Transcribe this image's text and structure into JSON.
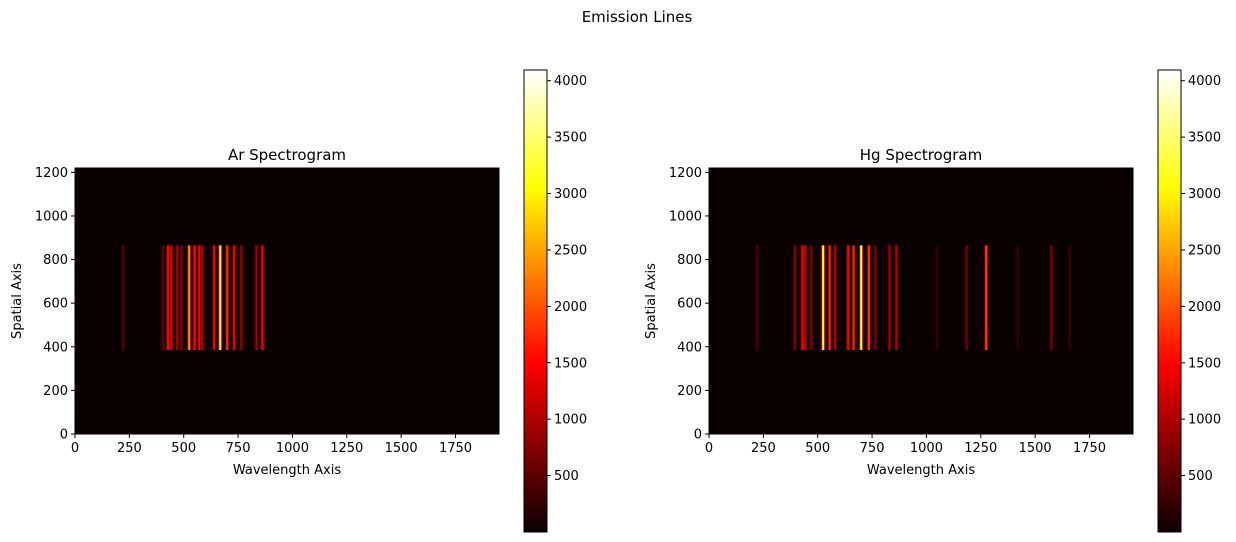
{
  "figure": {
    "suptitle": "Emission Lines"
  },
  "chart_data": [
    {
      "type": "heatmap",
      "title": "Ar Spectrogram",
      "xlabel": "Wavelength Axis",
      "ylabel": "Spatial Axis",
      "xlim": [
        0,
        1950
      ],
      "ylim": [
        0,
        1220
      ],
      "xticks": [
        0,
        250,
        500,
        750,
        1000,
        1250,
        1500,
        1750
      ],
      "yticks": [
        0,
        200,
        400,
        600,
        800,
        1000,
        1200
      ],
      "colormap": "hot",
      "background": "#0b0000",
      "line_y_range": [
        385,
        865
      ],
      "colorbar": {
        "range": [
          0,
          4095
        ],
        "ticks": [
          500,
          1000,
          1500,
          2000,
          2500,
          3000,
          3500,
          4000
        ]
      },
      "lines": [
        {
          "x": 222,
          "intensity": 450
        },
        {
          "x": 405,
          "intensity": 520
        },
        {
          "x": 428,
          "intensity": 1450
        },
        {
          "x": 443,
          "intensity": 1300
        },
        {
          "x": 470,
          "intensity": 950
        },
        {
          "x": 490,
          "intensity": 700
        },
        {
          "x": 525,
          "intensity": 2350
        },
        {
          "x": 550,
          "intensity": 1550
        },
        {
          "x": 572,
          "intensity": 1450
        },
        {
          "x": 585,
          "intensity": 1000
        },
        {
          "x": 640,
          "intensity": 1400
        },
        {
          "x": 668,
          "intensity": 3300
        },
        {
          "x": 700,
          "intensity": 1750
        },
        {
          "x": 732,
          "intensity": 1350
        },
        {
          "x": 765,
          "intensity": 800
        },
        {
          "x": 835,
          "intensity": 900
        },
        {
          "x": 862,
          "intensity": 1400
        }
      ]
    },
    {
      "type": "heatmap",
      "title": "Hg Spectrogram",
      "xlabel": "Wavelength Axis",
      "ylabel": "Spatial Axis",
      "xlim": [
        0,
        1950
      ],
      "ylim": [
        0,
        1220
      ],
      "xticks": [
        0,
        250,
        500,
        750,
        1000,
        1250,
        1500,
        1750
      ],
      "yticks": [
        0,
        200,
        400,
        600,
        800,
        1000,
        1200
      ],
      "colormap": "hot",
      "background": "#0b0000",
      "line_y_range": [
        385,
        865
      ],
      "colorbar": {
        "range": [
          0,
          4095
        ],
        "ticks": [
          500,
          1000,
          1500,
          2000,
          2500,
          3000,
          3500,
          4000
        ]
      },
      "lines": [
        {
          "x": 222,
          "intensity": 380
        },
        {
          "x": 395,
          "intensity": 700
        },
        {
          "x": 430,
          "intensity": 1500
        },
        {
          "x": 443,
          "intensity": 1100
        },
        {
          "x": 470,
          "intensity": 700
        },
        {
          "x": 525,
          "intensity": 3300
        },
        {
          "x": 555,
          "intensity": 1700
        },
        {
          "x": 580,
          "intensity": 1000
        },
        {
          "x": 640,
          "intensity": 1500
        },
        {
          "x": 665,
          "intensity": 1700
        },
        {
          "x": 700,
          "intensity": 3400
        },
        {
          "x": 735,
          "intensity": 1800
        },
        {
          "x": 765,
          "intensity": 700
        },
        {
          "x": 830,
          "intensity": 900
        },
        {
          "x": 862,
          "intensity": 1000
        },
        {
          "x": 1050,
          "intensity": 250
        },
        {
          "x": 1185,
          "intensity": 600
        },
        {
          "x": 1275,
          "intensity": 1900
        },
        {
          "x": 1420,
          "intensity": 250
        },
        {
          "x": 1575,
          "intensity": 650
        },
        {
          "x": 1660,
          "intensity": 250
        }
      ]
    }
  ]
}
